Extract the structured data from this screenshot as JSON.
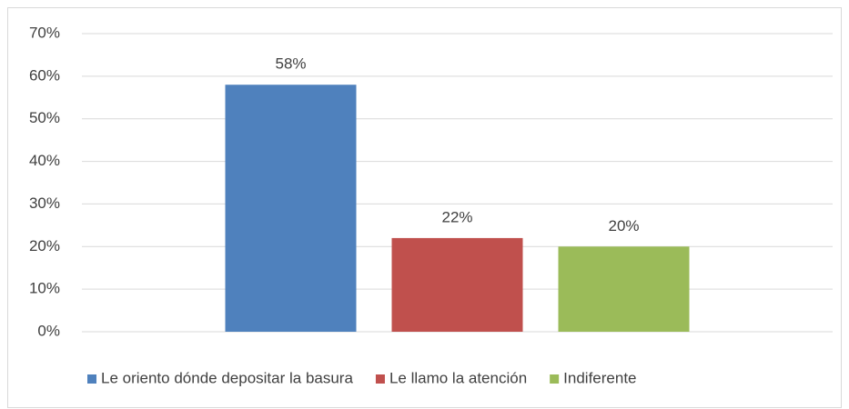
{
  "chart_data": {
    "type": "bar",
    "categories": [
      null
    ],
    "series": [
      {
        "name": "Le oriento dónde depositar la basura",
        "color": "#4f81bd",
        "values": [
          58
        ],
        "value_labels": [
          "58%"
        ]
      },
      {
        "name": "Le llamo la atención",
        "color": "#c0504d",
        "values": [
          22
        ],
        "value_labels": [
          "22%"
        ]
      },
      {
        "name": "Indiferente",
        "color": "#9bbb59",
        "values": [
          20
        ],
        "value_labels": [
          "20%"
        ]
      }
    ],
    "ylim": [
      0,
      70
    ],
    "yticks": [
      {
        "value": 0,
        "label": "0%"
      },
      {
        "value": 10,
        "label": "10%"
      },
      {
        "value": 20,
        "label": "20%"
      },
      {
        "value": 30,
        "label": "30%"
      },
      {
        "value": 40,
        "label": "40%"
      },
      {
        "value": 50,
        "label": "50%"
      },
      {
        "value": 60,
        "label": "60%"
      },
      {
        "value": 70,
        "label": "70%"
      }
    ],
    "grid": true,
    "legend": "bottom"
  }
}
